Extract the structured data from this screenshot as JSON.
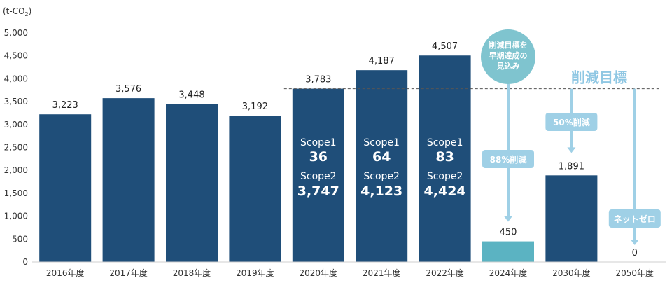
{
  "chart_data": {
    "type": "bar",
    "unit_label": "(t-CO",
    "unit_subscript": "2",
    "unit_close": ")",
    "categories": [
      "2016年度",
      "2017年度",
      "2018年度",
      "2019年度",
      "2020年度",
      "2021年度",
      "2022年度",
      "2024年度",
      "2030年度",
      "2050年度"
    ],
    "values": [
      3223,
      3576,
      3448,
      3192,
      3783,
      4187,
      4507,
      450,
      1891,
      0
    ],
    "value_labels": [
      "3,223",
      "3,576",
      "3,448",
      "3,192",
      "3,783",
      "4,187",
      "4,507",
      "450",
      "1,891",
      "0"
    ],
    "bar_kinds": [
      "actual",
      "actual",
      "actual",
      "actual",
      "actual",
      "actual",
      "actual",
      "forecast",
      "target",
      "target"
    ],
    "ylim": [
      0,
      5000
    ],
    "yticks": [
      0,
      500,
      1000,
      1500,
      2000,
      2500,
      3000,
      3500,
      4000,
      4500,
      5000
    ],
    "ytick_labels": [
      "0",
      "500",
      "1,000",
      "1,500",
      "2,000",
      "2,500",
      "3,000",
      "3,500",
      "4,000",
      "4,500",
      "5,000"
    ],
    "grid": false,
    "scope_breakdown": [
      {
        "category": "2020年度",
        "scope1_label": "Scope1",
        "scope1_value": "36",
        "scope2_label": "Scope2",
        "scope2_value": "3,747"
      },
      {
        "category": "2021年度",
        "scope1_label": "Scope1",
        "scope1_value": "64",
        "scope2_label": "Scope2",
        "scope2_value": "4,123"
      },
      {
        "category": "2022年度",
        "scope1_label": "Scope1",
        "scope1_value": "83",
        "scope2_label": "Scope2",
        "scope2_value": "4,424"
      }
    ],
    "reference_line": {
      "value": 3783,
      "label": "削減目標"
    },
    "forecast_bubble": {
      "lines": [
        "削減目標を",
        "早期達成の",
        "見込み"
      ]
    },
    "reduction_tags": [
      {
        "category": "2024年度",
        "label": "88%削減"
      },
      {
        "category": "2030年度",
        "label": "50%削減"
      },
      {
        "category": "2050年度",
        "label": "ネットゼロ"
      }
    ],
    "colors": {
      "actual": "#1f4e79",
      "forecast": "#5bb3c2",
      "target": "#1f4e79",
      "bubble": "#7fc4cf",
      "tag": "#9fd0e6",
      "target_label": "#8fc7e3",
      "axis_text": "#333333",
      "dashed_line": "#555555"
    }
  }
}
